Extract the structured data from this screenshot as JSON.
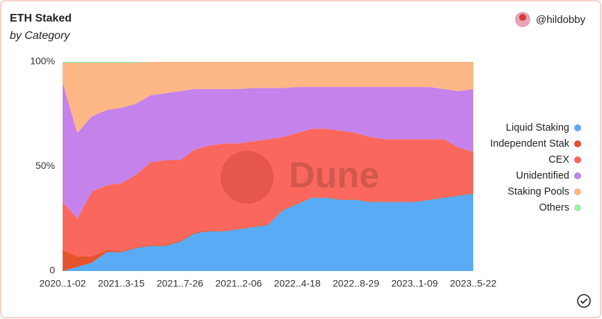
{
  "chart_data": {
    "type": "area",
    "stacked": true,
    "title": "ETH Staked",
    "subtitle": "by Category",
    "author": "@hildobby",
    "watermark": "Dune",
    "categories": [
      "2020..1-02",
      null,
      null,
      null,
      "2021..3-15",
      null,
      null,
      null,
      "2021..7-26",
      null,
      null,
      null,
      "2021..2-06",
      null,
      null,
      null,
      "2022..4-18",
      null,
      null,
      null,
      "2022..8-29",
      null,
      null,
      null,
      "2023..1-09",
      null,
      null,
      null,
      "2023..5-22"
    ],
    "series": [
      {
        "name": "Liquid Staking",
        "color": "#5aabf6",
        "values": [
          0,
          2,
          4,
          9,
          9,
          11,
          12,
          12,
          14,
          18,
          19,
          19,
          20,
          21,
          22,
          29,
          32,
          35,
          35,
          34,
          34,
          33,
          33,
          33,
          33,
          34,
          35,
          36,
          37
        ]
      },
      {
        "name": "Independent Stak",
        "color": "#e4532c",
        "values": [
          10,
          5,
          3,
          1,
          0.5,
          0.5,
          0.5,
          0.5,
          0.5,
          0.5,
          0.5,
          0.3,
          0.3,
          0.3,
          0.3,
          0.3,
          0.3,
          0.3,
          0.3,
          0.3,
          0.3,
          0.3,
          0.3,
          0.3,
          0.3,
          0.3,
          0.3,
          0.3,
          0.3
        ]
      },
      {
        "name": "CEX",
        "color": "#fa675c",
        "values": [
          23,
          18,
          31,
          31,
          32.5,
          34.5,
          39.5,
          40.5,
          38.5,
          39.5,
          40.5,
          41.7,
          40.7,
          40.7,
          40.7,
          34.7,
          33.7,
          32.7,
          32.7,
          32.7,
          31.7,
          30.7,
          29.7,
          29.7,
          29.7,
          28.7,
          27.7,
          22.7,
          19.7
        ]
      },
      {
        "name": "Unidentified",
        "color": "#c582ea",
        "values": [
          57,
          41,
          36,
          36,
          36,
          34,
          32,
          32,
          33,
          29,
          27,
          26,
          26,
          25.5,
          24.5,
          23.5,
          22,
          20,
          20,
          21,
          22,
          24,
          25,
          25,
          25,
          25,
          24,
          27,
          30
        ]
      },
      {
        "name": "Staking Pools",
        "color": "#fdb686",
        "values": [
          9.5,
          33.5,
          25.5,
          22.5,
          21.5,
          19.5,
          16,
          15,
          14,
          13,
          13,
          13,
          13,
          12.5,
          12.5,
          12.5,
          12,
          12,
          12,
          12,
          12,
          12,
          12,
          12,
          12,
          12,
          13,
          14,
          13
        ]
      },
      {
        "name": "Others",
        "color": "#9ef0a0",
        "values": [
          0.5,
          0.5,
          0.5,
          0.5,
          0.5,
          0.5,
          0,
          0,
          0,
          0,
          0,
          0,
          0,
          0,
          0,
          0,
          0,
          0,
          0,
          0,
          0,
          0,
          0,
          0,
          0,
          0,
          0,
          0,
          0
        ]
      }
    ],
    "ylim": [
      0,
      100
    ],
    "yticks": [
      0,
      {
        "value": 50,
        "label": "50%"
      },
      {
        "value": 100,
        "label": "100%"
      }
    ],
    "grid": false,
    "legend": "right"
  }
}
